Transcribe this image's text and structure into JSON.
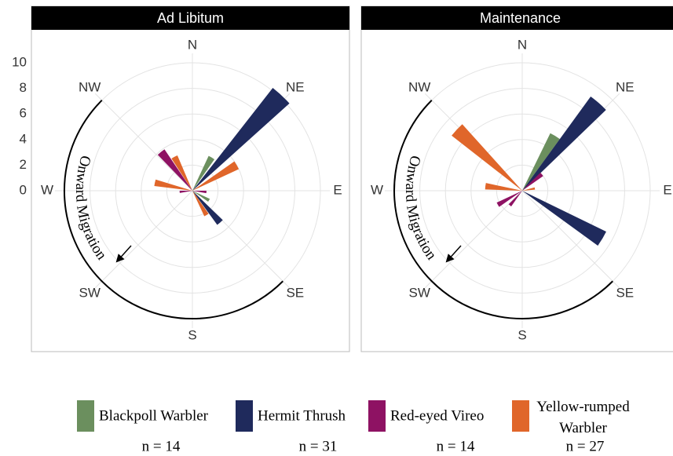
{
  "chart_data": [
    {
      "type": "rose",
      "title": "Ad Libitum",
      "directions": [
        "N",
        "NE",
        "E",
        "SE",
        "S",
        "SW",
        "W",
        "NW"
      ],
      "ylim": [
        0,
        10
      ],
      "yticks": [
        0,
        2,
        4,
        6,
        8,
        10
      ],
      "tick_labels": true,
      "grid": true,
      "annotation": "Onward Migration",
      "series": [
        {
          "name": "Blackpoll Warbler",
          "color": "#6b8f5e",
          "n_label": "n = 14",
          "x": [
            30,
            120
          ],
          "values": [
            3.0,
            1.5
          ]
        },
        {
          "name": "Hermit Thrush",
          "color": "#1f2a5c",
          "n_label": "n = 31",
          "x": [
            43,
            139
          ],
          "values": [
            10.2,
            3.3
          ]
        },
        {
          "name": "Red-eyed Vireo",
          "color": "#8e1263",
          "n_label": "n = 14",
          "x": [
            321,
            265,
            95
          ],
          "values": [
            3.9,
            1.0,
            1.1
          ]
        },
        {
          "name": "Yellow-rumped Warbler",
          "color": "#e0662a",
          "n_label": "n = 27",
          "x": [
            60,
            332,
            282,
            150
          ],
          "values": [
            4.0,
            3.0,
            3.0,
            2.2
          ]
        }
      ]
    },
    {
      "type": "rose",
      "title": "Maintenance",
      "directions": [
        "N",
        "NE",
        "E",
        "SE",
        "S",
        "SW",
        "W",
        "NW"
      ],
      "ylim": [
        0,
        10
      ],
      "yticks": [
        0,
        2,
        4,
        6,
        8,
        10
      ],
      "tick_labels": false,
      "grid": true,
      "annotation": "Onward Migration",
      "series": [
        {
          "color": "#6b8f5e",
          "x": [
            31
          ],
          "values": [
            5.0
          ]
        },
        {
          "color": "#1f2a5c",
          "x": [
            41,
            121
          ],
          "values": [
            9.1,
            7.3
          ]
        },
        {
          "color": "#8e1263",
          "x": [
            240,
            220,
            50
          ],
          "values": [
            2.2,
            1.5,
            2.0
          ]
        },
        {
          "color": "#e0662a",
          "x": [
            313,
            277,
            80
          ],
          "values": [
            7.0,
            2.9,
            1.0
          ]
        }
      ]
    }
  ]
}
